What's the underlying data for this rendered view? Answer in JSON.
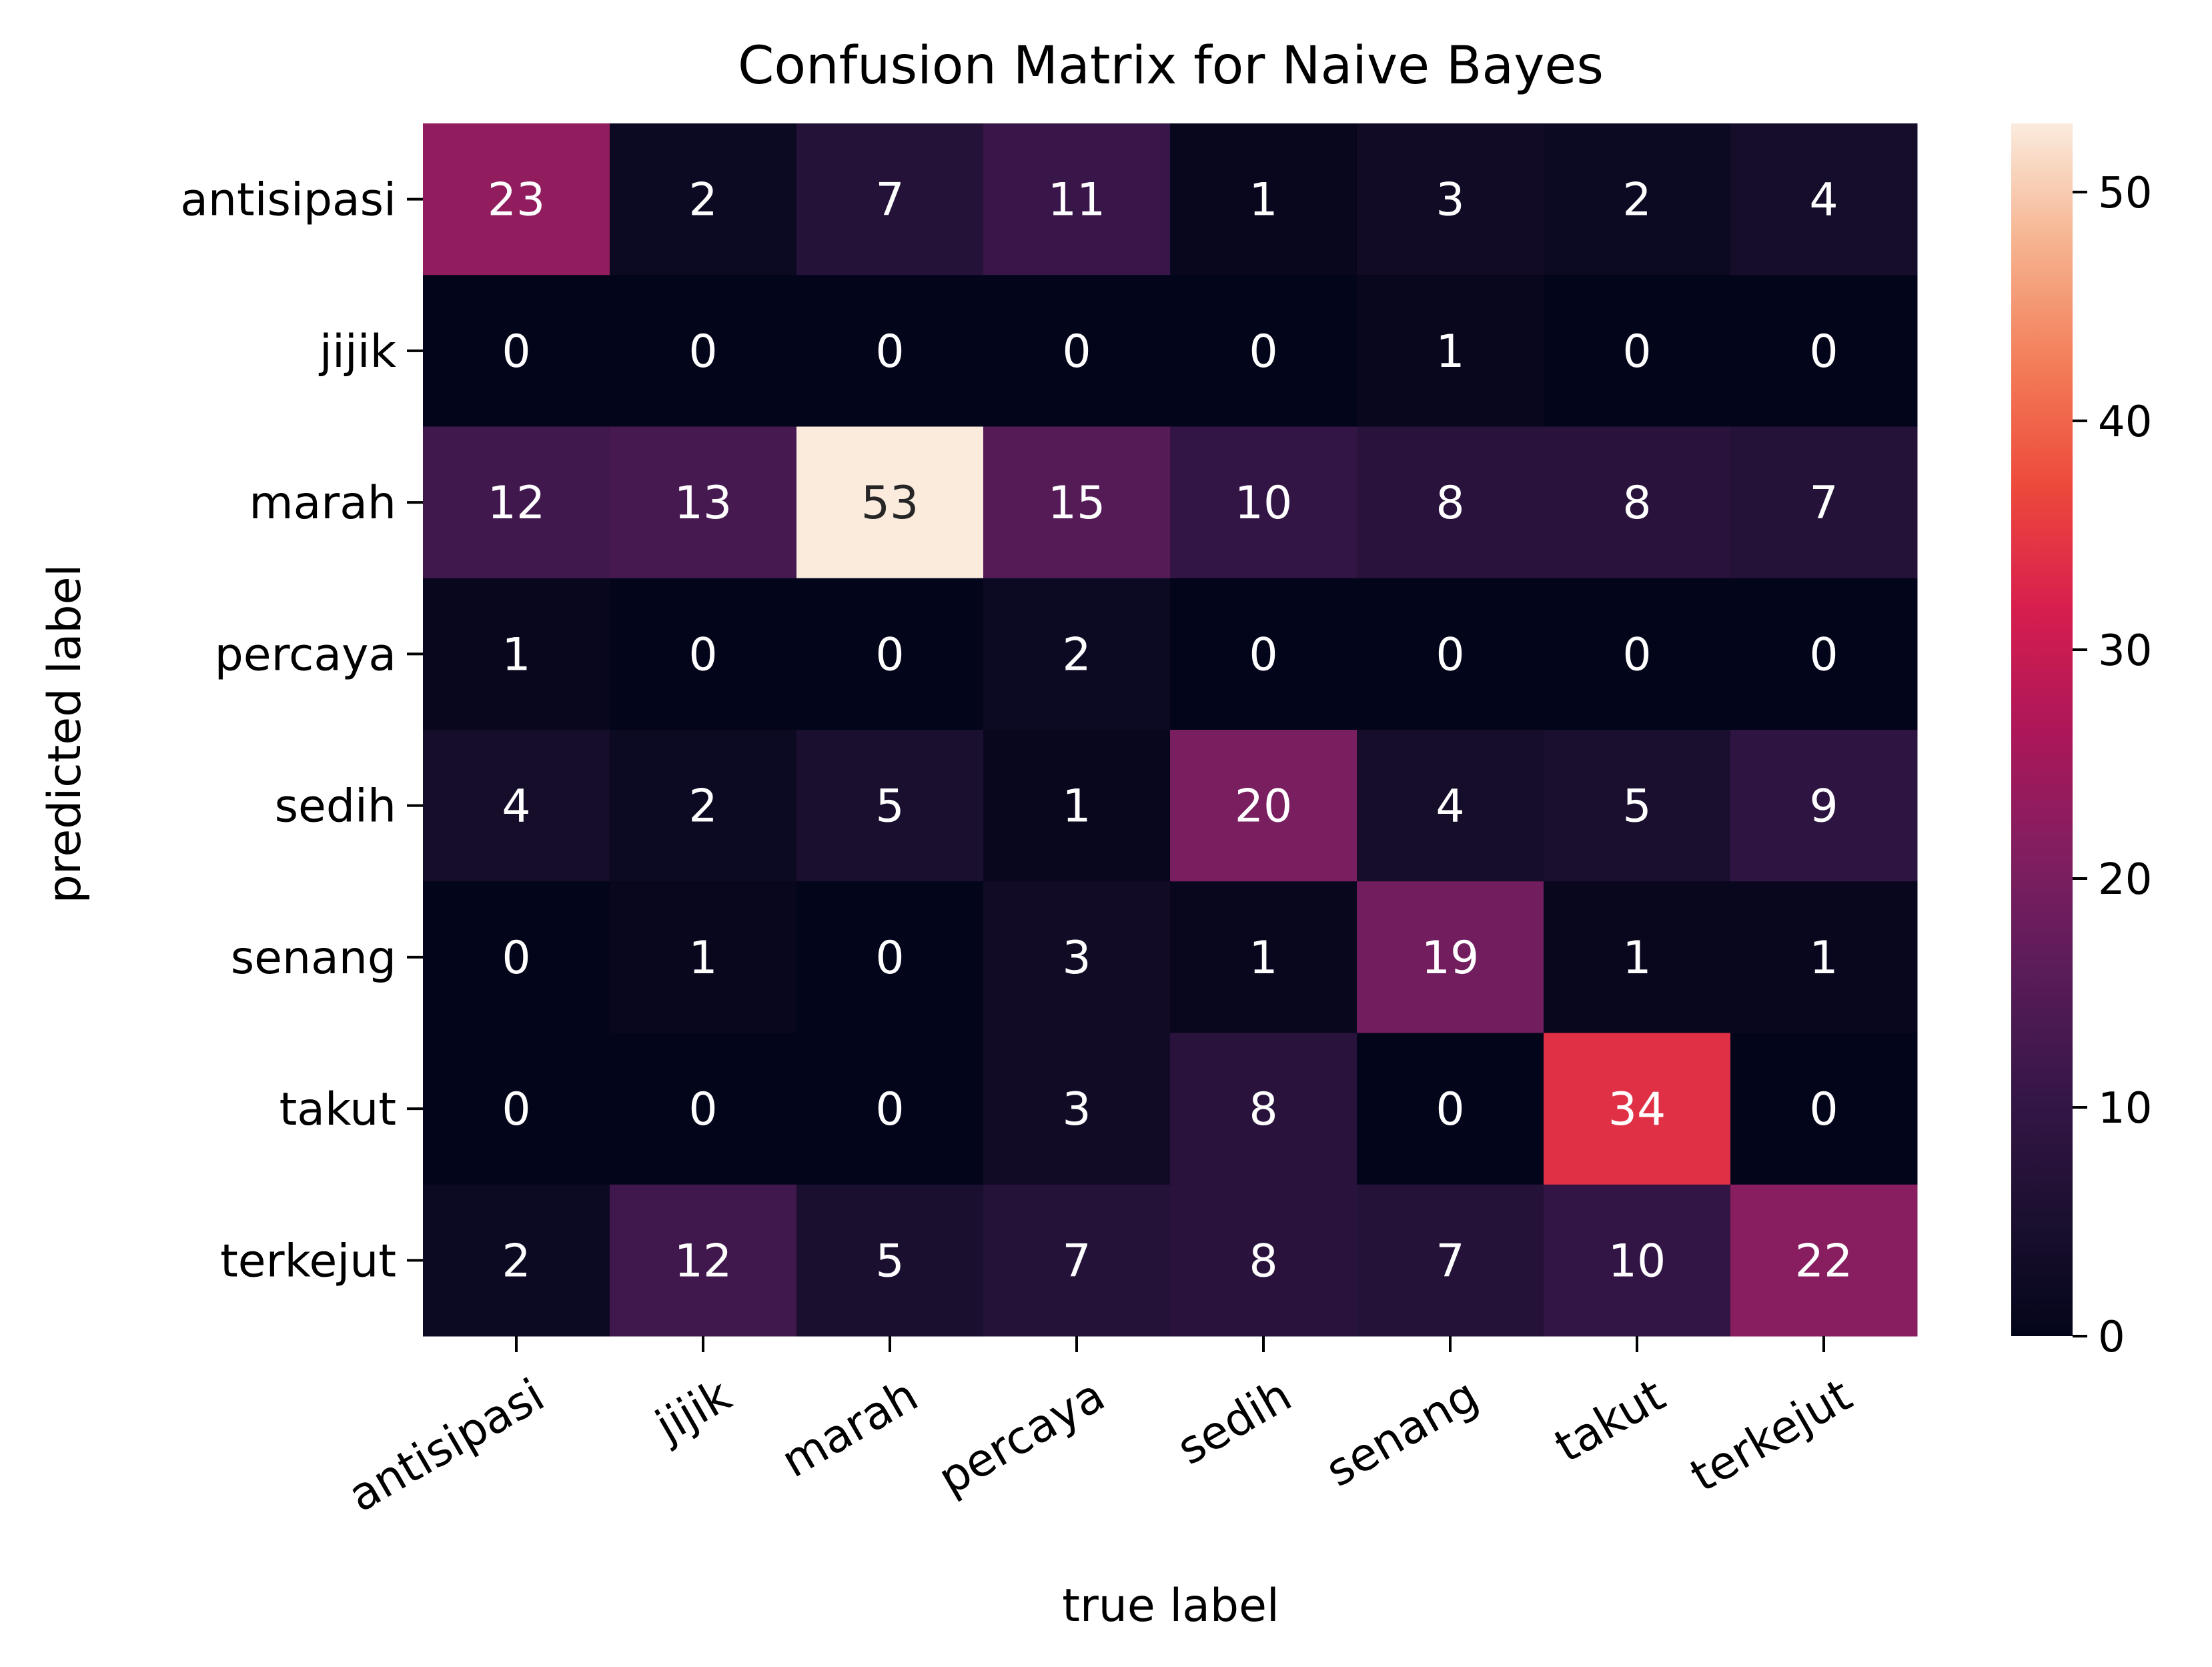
{
  "chart_data": {
    "type": "heatmap",
    "title": "Confusion Matrix for Naive Bayes",
    "xlabel": "true label",
    "ylabel": "predicted label",
    "x_categories": [
      "antisipasi",
      "jijik",
      "marah",
      "percaya",
      "sedih",
      "senang",
      "takut",
      "terkejut"
    ],
    "y_categories": [
      "antisipasi",
      "jijik",
      "marah",
      "percaya",
      "sedih",
      "senang",
      "takut",
      "terkejut"
    ],
    "values": [
      [
        23,
        2,
        7,
        11,
        1,
        3,
        2,
        4
      ],
      [
        0,
        0,
        0,
        0,
        0,
        1,
        0,
        0
      ],
      [
        12,
        13,
        53,
        15,
        10,
        8,
        8,
        7
      ],
      [
        1,
        0,
        0,
        2,
        0,
        0,
        0,
        0
      ],
      [
        4,
        2,
        5,
        1,
        20,
        4,
        5,
        9
      ],
      [
        0,
        1,
        0,
        3,
        1,
        19,
        1,
        1
      ],
      [
        0,
        0,
        0,
        3,
        8,
        0,
        34,
        0
      ],
      [
        2,
        12,
        5,
        7,
        8,
        7,
        10,
        22
      ]
    ],
    "colormap": "rocket",
    "vmin": 0,
    "vmax": 53,
    "colorbar_ticks": [
      0,
      10,
      20,
      30,
      40,
      50
    ],
    "x_tick_rotation_deg": 30
  }
}
